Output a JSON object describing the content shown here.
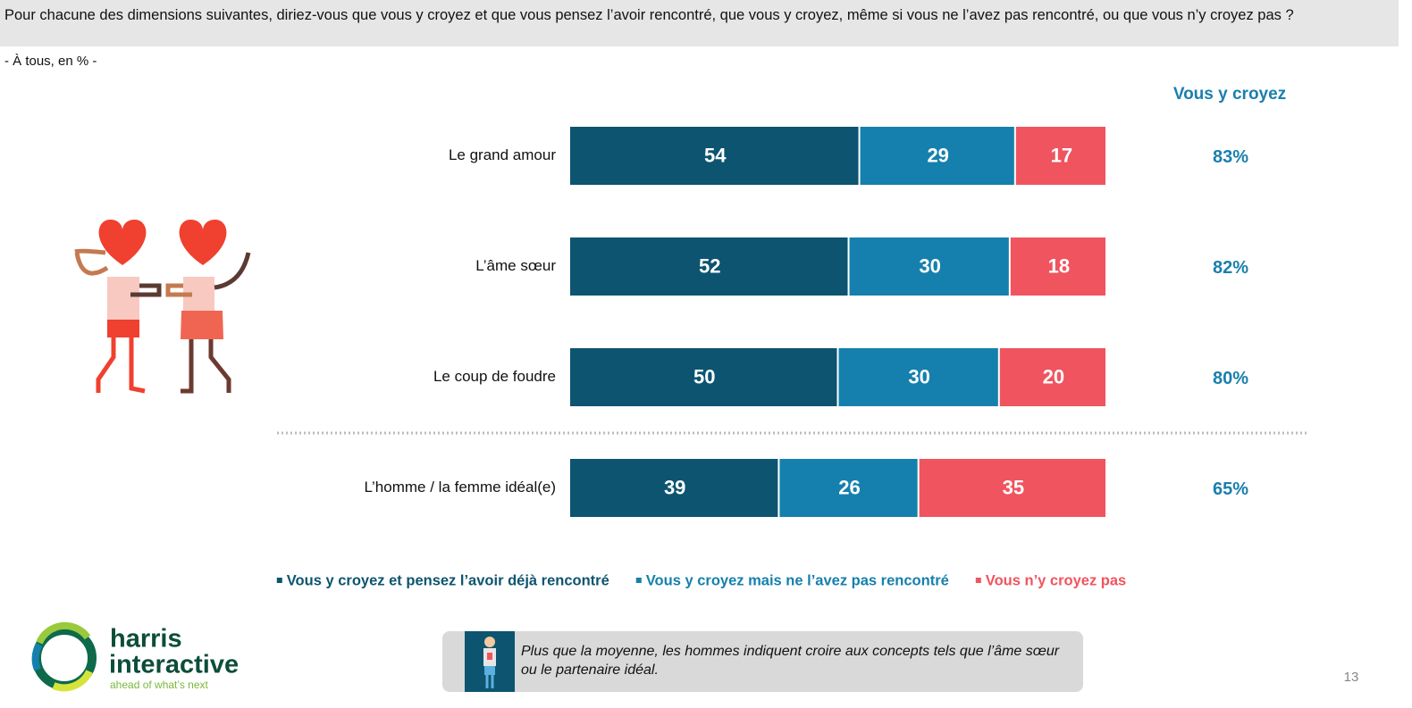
{
  "header": {
    "question": "Pour chacune des dimensions suivantes, diriez-vous que vous y croyez et que vous pensez l’avoir rencontré, que vous y croyez, même si vous ne l’avez pas rencontré, ou que vous n’y croyez pas ?",
    "base": "- À tous, en % -"
  },
  "chart_data": {
    "type": "bar",
    "orientation": "horizontal",
    "stacked": true,
    "categories": [
      "Le grand amour",
      "L’âme sœur",
      "Le coup de foudre",
      "L’homme / la femme idéal(e)"
    ],
    "series": [
      {
        "name": "Vous y croyez et pensez l’avoir déjà rencontré",
        "color": "#0d5470",
        "values": [
          54,
          52,
          50,
          39
        ]
      },
      {
        "name": "Vous y croyez mais ne l’avez pas rencontré",
        "color": "#1580ad",
        "values": [
          29,
          30,
          30,
          26
        ]
      },
      {
        "name": "Vous n’y croyez pas",
        "color": "#f0545f",
        "values": [
          17,
          18,
          20,
          35
        ]
      }
    ],
    "totals": {
      "title": "Vous y croyez",
      "color": "#1a7fad",
      "values": [
        83,
        82,
        80,
        65
      ],
      "value_labels": [
        "83%",
        "82%",
        "80%",
        "65%"
      ]
    },
    "legend": "bottom"
  },
  "logo": {
    "name1": "harris",
    "name2": "interactive",
    "tagline": "ahead of what’s next"
  },
  "note": "Plus que la moyenne, les hommes indiquent croire aux concepts tels que l’âme sœur ou le partenaire idéal.",
  "page_number": "13"
}
